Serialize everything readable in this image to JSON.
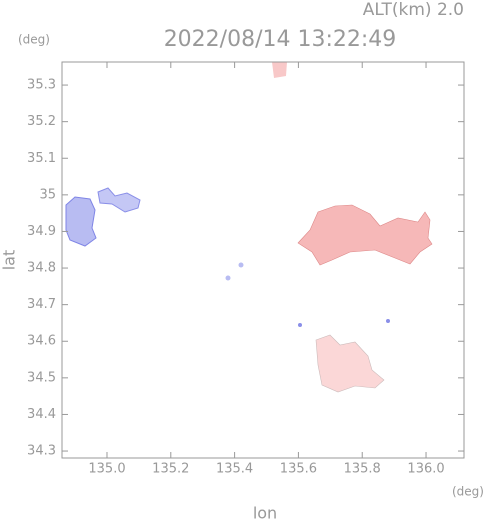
{
  "chart_data": {
    "type": "map",
    "title": "2022/08/14 13:22:49",
    "subtitle": "ALT(km) 2.0",
    "y_unit": "(deg)",
    "x_unit": "(deg)",
    "x_label": "lon",
    "y_label": "lat",
    "xlim": [
      134.859,
      136.119
    ],
    "ylim": [
      34.281,
      35.363
    ],
    "xticks": [
      {
        "value": 135,
        "label": "135.0"
      },
      135.2,
      135.4,
      135.6,
      135.8,
      {
        "value": 136,
        "label": "136.0"
      }
    ],
    "yticks": [
      34.3,
      34.4,
      34.5,
      34.6,
      34.7,
      34.8,
      34.9,
      35.0,
      35.1,
      35.2,
      35.3
    ]
  }
}
